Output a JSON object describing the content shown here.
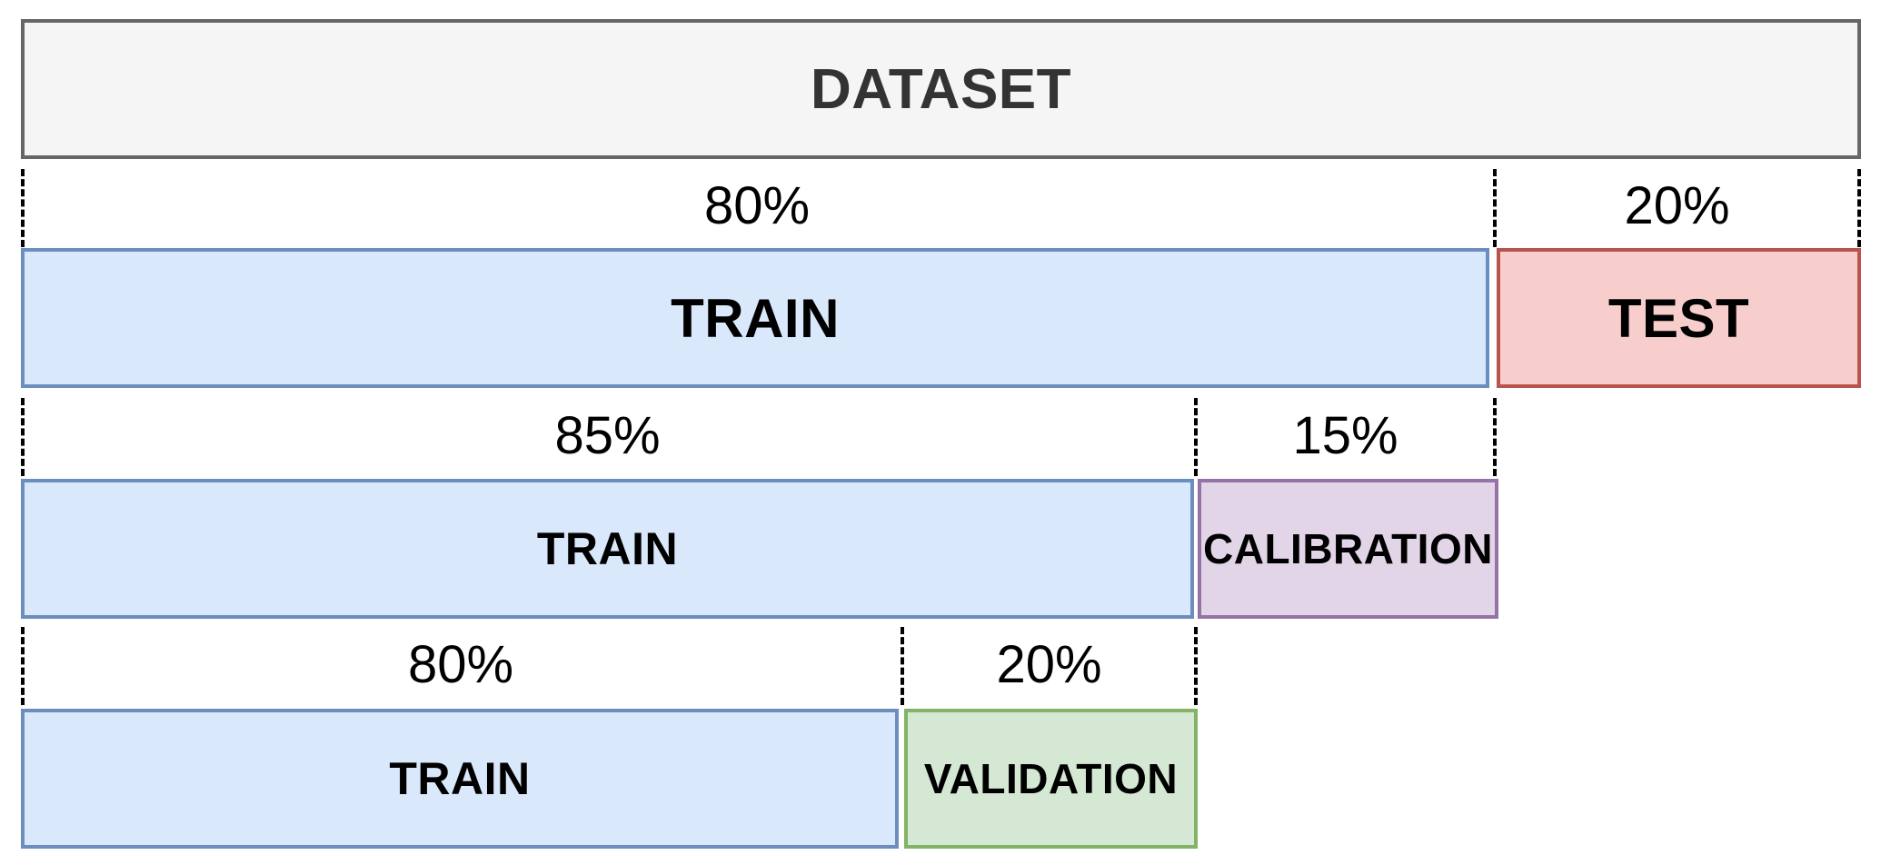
{
  "dataset": {
    "label": "DATASET",
    "fill": "#f5f5f5",
    "stroke": "#666666",
    "text_color": "#333333"
  },
  "split_1": {
    "train_pct": "80%",
    "test_pct": "20%",
    "train_label": "TRAIN",
    "test_label": "TEST"
  },
  "split_2": {
    "train_pct": "85%",
    "calibration_pct": "15%",
    "train_label": "TRAIN",
    "calibration_label": "CALIBRATION"
  },
  "split_3": {
    "train_pct": "80%",
    "validation_pct": "20%",
    "train_label": "TRAIN",
    "validation_label": "VALIDATION"
  },
  "colors": {
    "train_fill": "#dae8fc",
    "train_stroke": "#6c8ebf",
    "test_fill": "#f8cecc",
    "test_stroke": "#b85450",
    "calibration_fill": "#e1d5e7",
    "calibration_stroke": "#9673a6",
    "validation_fill": "#d5e8d4",
    "validation_stroke": "#82b366"
  }
}
